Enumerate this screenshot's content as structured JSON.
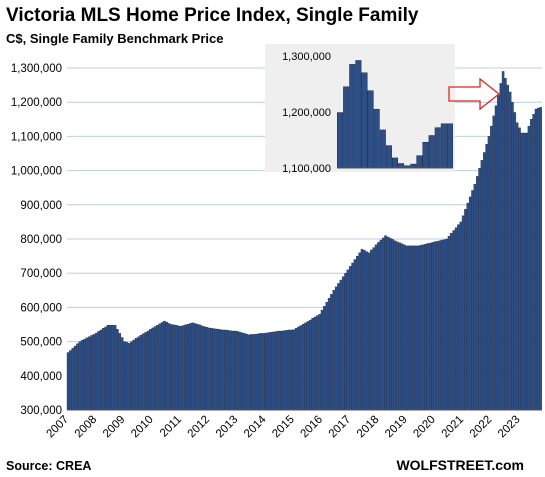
{
  "header": {
    "title": "Victoria MLS Home Price Index, Single Family",
    "subtitle": "C$, Single Family Benchmark Price"
  },
  "footer": {
    "source": "Source: CREA",
    "brand": "WOLFSTREET.com"
  },
  "colors": {
    "bar_fill": "#2e4f86",
    "bar_stroke": "#16284a",
    "gridline": "#b8cfe0",
    "inset_background": "#efefef",
    "arrow_stroke": "#e0261f"
  },
  "chart_data": {
    "type": "bar",
    "title": "Victoria MLS Home Price Index, Single Family",
    "subtitle": "C$, Single Family Benchmark Price",
    "ylim": [
      300000,
      1300000
    ],
    "yticks": [
      300000,
      400000,
      500000,
      600000,
      700000,
      800000,
      900000,
      1000000,
      1100000,
      1200000,
      1300000
    ],
    "ytick_labels": [
      "300,000",
      "400,000",
      "500,000",
      "600,000",
      "700,000",
      "800,000",
      "900,000",
      "1,000,000",
      "1,100,000",
      "1,200,000",
      "1,300,000"
    ],
    "xtick_labels": [
      "2007",
      "2008",
      "2009",
      "2010",
      "2011",
      "2012",
      "2013",
      "2014",
      "2015",
      "2016",
      "2017",
      "2018",
      "2019",
      "2020",
      "2021",
      "2022",
      "2023"
    ],
    "grid": true,
    "frequency": "monthly",
    "start_year": 2007,
    "anchors": [
      [
        "2007-01",
        468000
      ],
      [
        "2007-06",
        500000
      ],
      [
        "2008-01",
        525000
      ],
      [
        "2008-06",
        548000
      ],
      [
        "2008-09",
        548000
      ],
      [
        "2009-01",
        500000
      ],
      [
        "2009-03",
        495000
      ],
      [
        "2009-06",
        510000
      ],
      [
        "2010-01",
        540000
      ],
      [
        "2010-06",
        560000
      ],
      [
        "2010-09",
        550000
      ],
      [
        "2011-01",
        545000
      ],
      [
        "2011-06",
        555000
      ],
      [
        "2012-01",
        540000
      ],
      [
        "2012-06",
        535000
      ],
      [
        "2013-01",
        530000
      ],
      [
        "2013-06",
        520000
      ],
      [
        "2014-01",
        525000
      ],
      [
        "2014-06",
        530000
      ],
      [
        "2015-01",
        535000
      ],
      [
        "2015-06",
        555000
      ],
      [
        "2015-12",
        580000
      ],
      [
        "2016-06",
        650000
      ],
      [
        "2016-12",
        710000
      ],
      [
        "2017-06",
        770000
      ],
      [
        "2017-09",
        760000
      ],
      [
        "2018-01",
        790000
      ],
      [
        "2018-04",
        810000
      ],
      [
        "2018-08",
        795000
      ],
      [
        "2019-01",
        780000
      ],
      [
        "2019-06",
        780000
      ],
      [
        "2019-12",
        790000
      ],
      [
        "2020-06",
        800000
      ],
      [
        "2020-12",
        850000
      ],
      [
        "2021-06",
        960000
      ],
      [
        "2021-12",
        1100000
      ],
      [
        "2022-04",
        1220000
      ],
      [
        "2022-06",
        1290000
      ],
      [
        "2022-09",
        1230000
      ],
      [
        "2022-12",
        1140000
      ],
      [
        "2023-02",
        1110000
      ],
      [
        "2023-04",
        1110000
      ],
      [
        "2023-06",
        1150000
      ],
      [
        "2023-08",
        1180000
      ],
      [
        "2023-10",
        1185000
      ]
    ],
    "inset": {
      "type": "bar",
      "ylim": [
        1100000,
        1300000
      ],
      "yticks": [
        1100000,
        1200000,
        1300000
      ],
      "ytick_labels": [
        "1,100,000",
        "1,200,000",
        "1,300,000"
      ],
      "values": [
        1199000,
        1245000,
        1285000,
        1292000,
        1270000,
        1238000,
        1205000,
        1168000,
        1140000,
        1118000,
        1108000,
        1104000,
        1107000,
        1122000,
        1146000,
        1158000,
        1172000,
        1179000,
        1179000
      ]
    }
  }
}
